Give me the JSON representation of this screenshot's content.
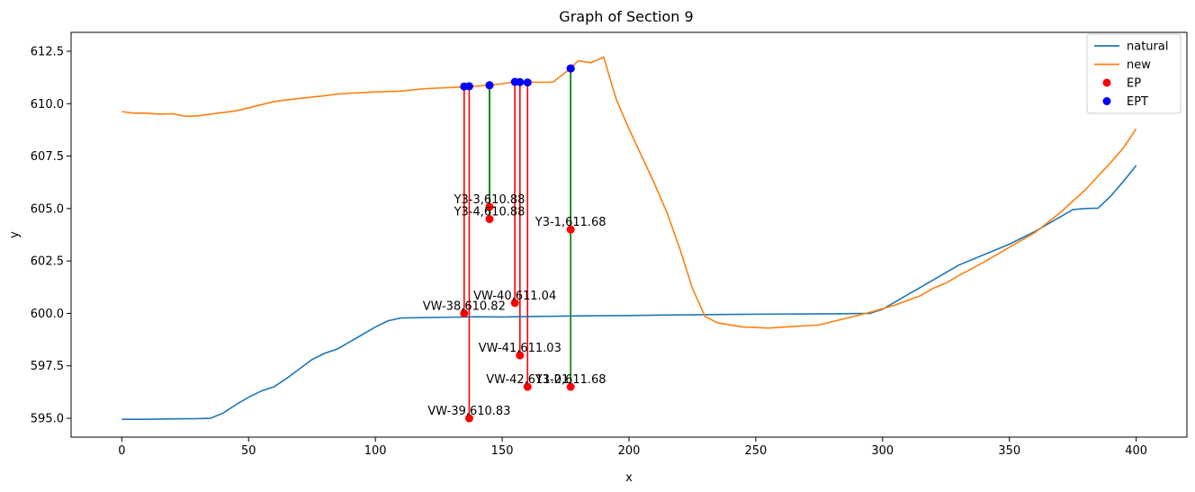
{
  "chart_data": {
    "type": "line",
    "title": "Graph of Section 9",
    "xlabel": "x",
    "ylabel": "y",
    "xlim": [
      -20,
      420
    ],
    "ylim": [
      594.1,
      613.4
    ],
    "xticks": [
      0,
      50,
      100,
      150,
      200,
      250,
      300,
      350,
      400
    ],
    "yticks": [
      595.0,
      597.5,
      600.0,
      602.5,
      605.0,
      607.5,
      610.0,
      612.5
    ],
    "ytick_labels": [
      "595.0",
      "597.5",
      "600.0",
      "602.5",
      "605.0",
      "607.5",
      "610.0",
      "612.5"
    ],
    "legend_position": "top-right",
    "legend": [
      {
        "label": "natural",
        "kind": "line",
        "color": "#1f77b4"
      },
      {
        "label": "new",
        "kind": "line",
        "color": "#ff7f0e"
      },
      {
        "label": "EP",
        "kind": "marker",
        "color": "#ff0000"
      },
      {
        "label": "EPT",
        "kind": "marker",
        "color": "#0000ff"
      }
    ],
    "series": [
      {
        "name": "natural",
        "color": "#1f77b4",
        "x": [
          0,
          10,
          20,
          30,
          35,
          40,
          45,
          50,
          55,
          60,
          65,
          70,
          75,
          80,
          85,
          90,
          95,
          100,
          105,
          110,
          120,
          130,
          140,
          150,
          160,
          180,
          200,
          220,
          240,
          260,
          280,
          295,
          300,
          310,
          320,
          330,
          340,
          350,
          360,
          370,
          375,
          380,
          385,
          390,
          395,
          400
        ],
        "y": [
          594.95,
          594.95,
          594.97,
          594.98,
          595.0,
          595.25,
          595.65,
          596.0,
          596.3,
          596.5,
          596.9,
          597.35,
          597.8,
          598.1,
          598.3,
          598.65,
          599.0,
          599.35,
          599.65,
          599.78,
          599.8,
          599.82,
          599.84,
          599.83,
          599.85,
          599.88,
          599.9,
          599.93,
          599.95,
          599.97,
          599.98,
          600.0,
          600.2,
          600.9,
          601.6,
          602.3,
          602.8,
          603.3,
          603.9,
          604.6,
          604.95,
          605.0,
          605.02,
          605.6,
          606.3,
          607.05
        ]
      },
      {
        "name": "new",
        "color": "#ff7f0e",
        "x": [
          0,
          5,
          10,
          15,
          20,
          25,
          30,
          40,
          45,
          50,
          55,
          60,
          65,
          70,
          80,
          85,
          90,
          100,
          110,
          120,
          135,
          140,
          145,
          150,
          155,
          160,
          165,
          170,
          177,
          180,
          185,
          190,
          195,
          200,
          205,
          210,
          215,
          220,
          225,
          230,
          235,
          245,
          255,
          265,
          275,
          285,
          295,
          305,
          315,
          320,
          325,
          330,
          340,
          350,
          360,
          370,
          380,
          390,
          395,
          400
        ],
        "y": [
          609.62,
          609.55,
          609.55,
          609.5,
          609.52,
          609.4,
          609.42,
          609.58,
          609.66,
          609.8,
          609.95,
          610.1,
          610.18,
          610.25,
          610.38,
          610.46,
          610.5,
          610.56,
          610.6,
          610.72,
          610.8,
          610.84,
          610.88,
          610.95,
          611.04,
          611.03,
          611.02,
          611.03,
          611.68,
          612.05,
          611.95,
          612.22,
          610.2,
          608.8,
          607.5,
          606.2,
          604.8,
          603.1,
          601.2,
          599.85,
          599.55,
          599.35,
          599.3,
          599.38,
          599.45,
          599.75,
          600.05,
          600.4,
          600.85,
          601.2,
          601.45,
          601.8,
          602.45,
          603.15,
          603.85,
          604.8,
          605.9,
          607.2,
          607.9,
          608.8
        ]
      }
    ],
    "EP": [
      {
        "x": 135,
        "y": 600.0,
        "label": "VW-38,610.82"
      },
      {
        "x": 137,
        "y": 595.0,
        "label": "VW-39,610.83"
      },
      {
        "x": 145,
        "y": 605.08,
        "label": "Y3-3,610.88"
      },
      {
        "x": 145,
        "y": 604.5,
        "label": "Y3-4,610.88"
      },
      {
        "x": 155,
        "y": 600.5,
        "label": "VW-40,611.04"
      },
      {
        "x": 157,
        "y": 598.0,
        "label": "VW-41,611.03"
      },
      {
        "x": 160,
        "y": 596.5,
        "label": "VW-42,611.01"
      },
      {
        "x": 177,
        "y": 604.0,
        "label": "Y3-1,611.68"
      },
      {
        "x": 177,
        "y": 596.5,
        "label": "Y3-2,611.68"
      }
    ],
    "EPT": [
      {
        "x": 135,
        "y": 610.82
      },
      {
        "x": 137,
        "y": 610.83
      },
      {
        "x": 145,
        "y": 610.88
      },
      {
        "x": 145,
        "y": 610.88
      },
      {
        "x": 155,
        "y": 611.04
      },
      {
        "x": 157,
        "y": 611.03
      },
      {
        "x": 160,
        "y": 611.01
      },
      {
        "x": 177,
        "y": 611.68
      },
      {
        "x": 177,
        "y": 611.68
      }
    ],
    "connectors": [
      {
        "x": 135,
        "y0": 600.0,
        "y1": 610.82,
        "color": "#ff0000"
      },
      {
        "x": 137,
        "y0": 595.0,
        "y1": 610.83,
        "color": "#ff0000"
      },
      {
        "x": 145,
        "y0": 605.08,
        "y1": 610.88,
        "color": "#008000"
      },
      {
        "x": 145,
        "y0": 604.5,
        "y1": 610.88,
        "color": "#008000"
      },
      {
        "x": 155,
        "y0": 600.5,
        "y1": 611.04,
        "color": "#ff0000"
      },
      {
        "x": 157,
        "y0": 598.0,
        "y1": 611.03,
        "color": "#ff0000"
      },
      {
        "x": 160,
        "y0": 596.5,
        "y1": 611.01,
        "color": "#ff0000"
      },
      {
        "x": 177,
        "y0": 604.0,
        "y1": 611.68,
        "color": "#008000"
      },
      {
        "x": 177,
        "y0": 596.5,
        "y1": 611.68,
        "color": "#008000"
      }
    ]
  }
}
